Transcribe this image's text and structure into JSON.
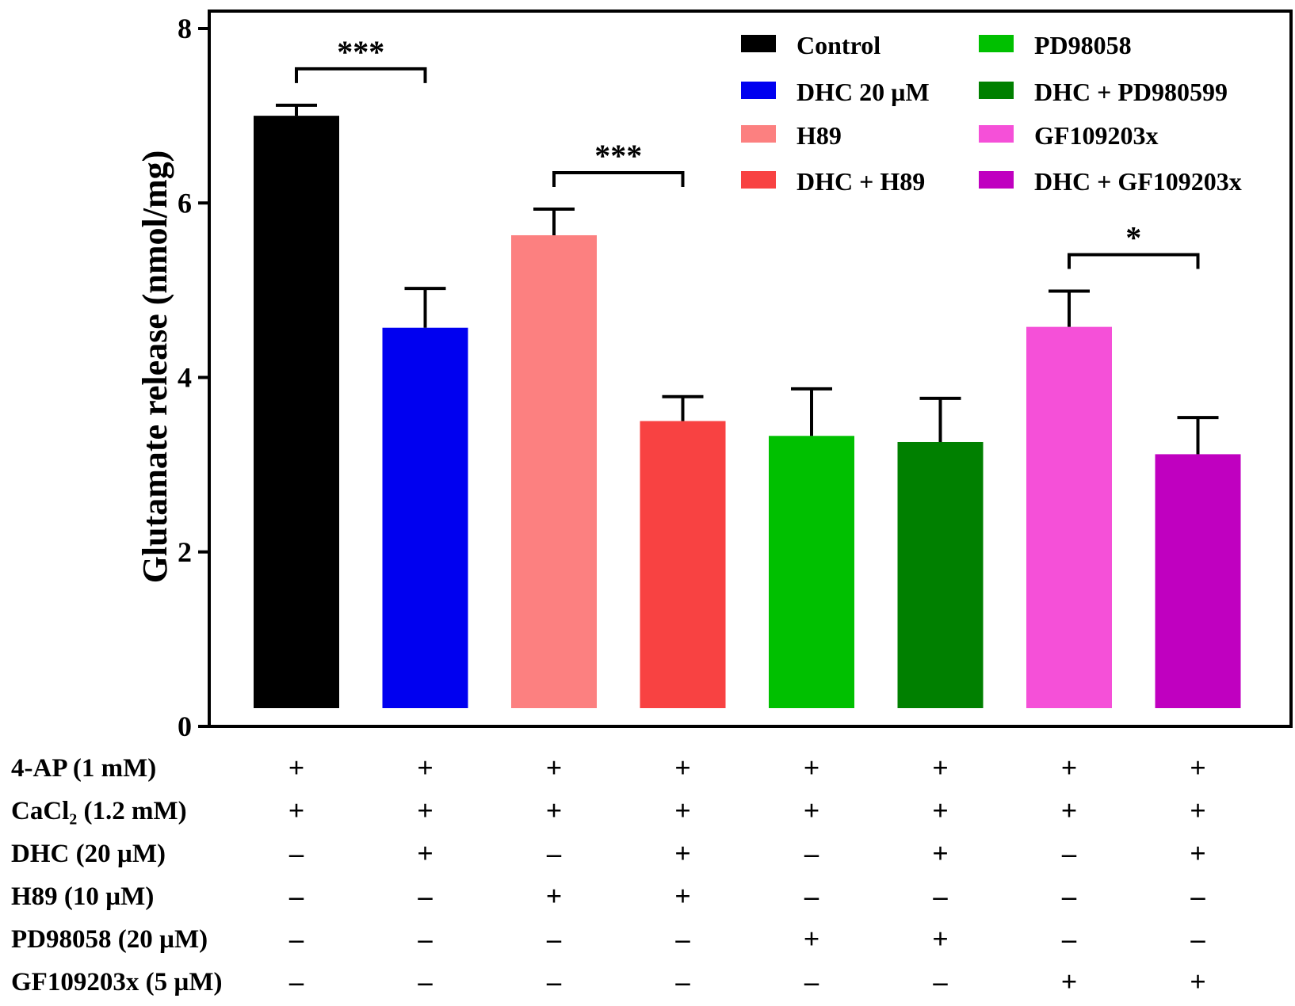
{
  "chart_data": {
    "type": "bar",
    "ylabel": "Glutamate release (nmol/mg)",
    "ylim": [
      0,
      8
    ],
    "yticks": [
      0,
      2,
      4,
      6,
      8
    ],
    "bars": [
      {
        "name": "Control",
        "value": 7.0,
        "error": 0.12,
        "color": "#000000"
      },
      {
        "name": "DHC 20 µM",
        "value": 4.57,
        "error": 0.45,
        "color": "#0000f0"
      },
      {
        "name": "H89",
        "value": 5.63,
        "error": 0.3,
        "color": "#fc8080"
      },
      {
        "name": "DHC + H89",
        "value": 3.5,
        "error": 0.28,
        "color": "#f84242"
      },
      {
        "name": "PD98058",
        "value": 3.33,
        "error": 0.54,
        "color": "#00c000"
      },
      {
        "name": "DHC + PD980599",
        "value": 3.26,
        "error": 0.5,
        "color": "#008000"
      },
      {
        "name": "GF109203x",
        "value": 4.58,
        "error": 0.41,
        "color": "#f550d8"
      },
      {
        "name": "DHC + GF109203x",
        "value": 3.12,
        "error": 0.42,
        "color": "#c000c0"
      }
    ],
    "significance": [
      {
        "from": 0,
        "to": 1,
        "label": "***"
      },
      {
        "from": 2,
        "to": 3,
        "label": "***"
      },
      {
        "from": 6,
        "to": 7,
        "label": "*"
      }
    ],
    "legend": {
      "placement": "top-right",
      "columns": [
        [
          "Control",
          "DHC 20 µM",
          "H89",
          "DHC + H89"
        ],
        [
          "PD98058",
          "DHC + PD980599",
          "GF109203x",
          "DHC + GF109203x"
        ]
      ]
    },
    "conditions": [
      {
        "label": "4-AP (1 mM)",
        "signs": [
          "+",
          "+",
          "+",
          "+",
          "+",
          "+",
          "+",
          "+"
        ]
      },
      {
        "label": "CaCl₂ (1.2 mM)",
        "signs": [
          "+",
          "+",
          "+",
          "+",
          "+",
          "+",
          "+",
          "+"
        ]
      },
      {
        "label": "DHC (20 µM)",
        "signs": [
          "–",
          "+",
          "–",
          "+",
          "–",
          "+",
          "–",
          "+"
        ]
      },
      {
        "label": "H89 (10 µM)",
        "signs": [
          "–",
          "–",
          "+",
          "+",
          "–",
          "–",
          "–",
          "–"
        ]
      },
      {
        "label": "PD98058 (20 µM)",
        "signs": [
          "–",
          "–",
          "–",
          "–",
          "+",
          "+",
          "–",
          "–"
        ]
      },
      {
        "label": "GF109203x (5 µM)",
        "signs": [
          "–",
          "–",
          "–",
          "–",
          "–",
          "–",
          "+",
          "+"
        ]
      }
    ]
  }
}
